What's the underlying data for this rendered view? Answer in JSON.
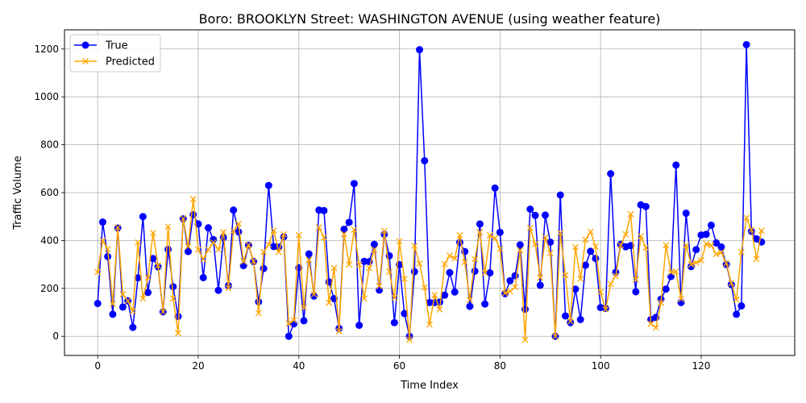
{
  "chart_data": {
    "type": "line",
    "title": "Boro: BROOKLYN Street: WASHINGTON AVENUE (using weather feature)",
    "xlabel": "Time Index",
    "ylabel": "Traffic Volume",
    "xlim": [
      -6.6,
      138.6
    ],
    "ylim": [
      -80,
      1280
    ],
    "xticks": [
      0,
      20,
      40,
      60,
      80,
      100,
      120
    ],
    "yticks": [
      0,
      200,
      400,
      600,
      800,
      1000,
      1200
    ],
    "grid": true,
    "legend_position": "top-left",
    "series": [
      {
        "name": "True",
        "color": "#0000ff",
        "marker": "circle",
        "values": [
          137,
          477,
          333,
          92,
          452,
          122,
          148,
          37,
          244,
          500,
          183,
          325,
          290,
          102,
          363,
          207,
          83,
          490,
          354,
          508,
          469,
          245,
          453,
          404,
          192,
          412,
          212,
          527,
          436,
          295,
          380,
          312,
          144,
          283,
          630,
          375,
          372,
          415,
          0,
          52,
          286,
          65,
          344,
          168,
          527,
          525,
          227,
          157,
          33,
          447,
          476,
          638,
          46,
          313,
          312,
          384,
          193,
          426,
          336,
          57,
          299,
          95,
          0,
          270,
          1197,
          733,
          141,
          141,
          143,
          172,
          266,
          185,
          392,
          354,
          125,
          272,
          469,
          135,
          265,
          619,
          434,
          178,
          232,
          253,
          382,
          113,
          531,
          505,
          213,
          506,
          393,
          0,
          590,
          85,
          57,
          197,
          70,
          297,
          355,
          325,
          120,
          117,
          679,
          267,
          384,
          374,
          379,
          186,
          549,
          542,
          70,
          79,
          155,
          197,
          250,
          715,
          141,
          514,
          291,
          362,
          423,
          426,
          464,
          390,
          373,
          300,
          216,
          92,
          127,
          1218,
          438,
          407,
          394
        ]
      },
      {
        "name": "Predicted",
        "color": "#ffa500",
        "marker": "x",
        "values": [
          268,
          400,
          365,
          135,
          455,
          175,
          148,
          105,
          392,
          158,
          245,
          432,
          295,
          102,
          458,
          158,
          13,
          492,
          375,
          573,
          362,
          322,
          362,
          392,
          362,
          435,
          202,
          440,
          470,
          312,
          382,
          313,
          97,
          353,
          383,
          442,
          352,
          426,
          53,
          67,
          422,
          120,
          319,
          175,
          455,
          413,
          140,
          286,
          21,
          427,
          300,
          445,
          300,
          158,
          285,
          362,
          210,
          440,
          270,
          160,
          397,
          240,
          -14,
          378,
          303,
          203,
          49,
          172,
          112,
          302,
          337,
          325,
          422,
          310,
          152,
          322,
          435,
          265,
          422,
          410,
          365,
          180,
          188,
          205,
          360,
          -15,
          453,
          385,
          245,
          413,
          347,
          0,
          432,
          255,
          62,
          372,
          240,
          403,
          437,
          375,
          185,
          112,
          219,
          252,
          380,
          426,
          510,
          237,
          418,
          370,
          52,
          36,
          140,
          380,
          267,
          270,
          155,
          380,
          300,
          308,
          317,
          386,
          380,
          343,
          350,
          305,
          222,
          153,
          351,
          495,
          445,
          323,
          441
        ]
      }
    ]
  }
}
